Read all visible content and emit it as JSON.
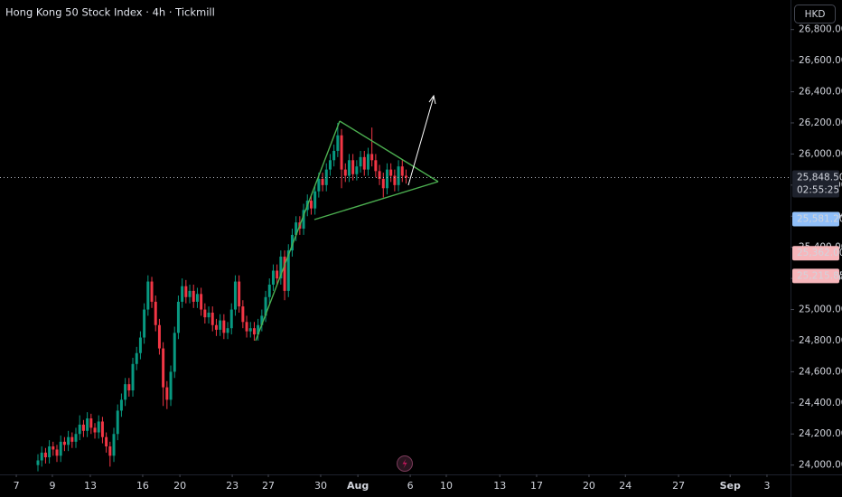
{
  "chart_data": {
    "type": "candlestick",
    "title": "Hong Kong 50 Stock Index · 4h · Tickmill",
    "currency": "HKD",
    "countdown": "02:55:25",
    "up_color": "#089981",
    "down_color": "#f23645",
    "grid": false,
    "ylim": [
      23940,
      26990
    ],
    "yticks": [
      {
        "value": 24000,
        "label": "24,000.00"
      },
      {
        "value": 24200,
        "label": "24,200.00"
      },
      {
        "value": 24400,
        "label": "24,400.00"
      },
      {
        "value": 24600,
        "label": "24,600.00"
      },
      {
        "value": 24800,
        "label": "24,800.00"
      },
      {
        "value": 25000,
        "label": "25,000.00"
      },
      {
        "value": 25200,
        "label": "25,200.00"
      },
      {
        "value": 25400,
        "label": "25,400.00"
      },
      {
        "value": 25600,
        "label": "25,600.00"
      },
      {
        "value": 25800,
        "label": "25,800.00"
      },
      {
        "value": 26000,
        "label": "26,000.00"
      },
      {
        "value": 26200,
        "label": "26,200.00"
      },
      {
        "value": 26400,
        "label": "26,400.00"
      },
      {
        "value": 26600,
        "label": "26,600.00"
      },
      {
        "value": 26800,
        "label": "26,800.00"
      }
    ],
    "xlim": [
      -10,
      198.3
    ],
    "xticks": [
      {
        "value": -5.7,
        "label": "7"
      },
      {
        "value": 3.8,
        "label": "9"
      },
      {
        "value": 13.8,
        "label": "13"
      },
      {
        "value": 27.6,
        "label": "16"
      },
      {
        "value": 37.4,
        "label": "20"
      },
      {
        "value": 51.2,
        "label": "23"
      },
      {
        "value": 60.7,
        "label": "27"
      },
      {
        "value": 74.5,
        "label": "30"
      },
      {
        "value": 84.3,
        "label": "Aug"
      },
      {
        "value": 98.1,
        "label": "6"
      },
      {
        "value": 107.6,
        "label": "10"
      },
      {
        "value": 121.7,
        "label": "13"
      },
      {
        "value": 131.4,
        "label": "17"
      },
      {
        "value": 145.2,
        "label": "20"
      },
      {
        "value": 154.8,
        "label": "24"
      },
      {
        "value": 168.8,
        "label": "27"
      },
      {
        "value": 182.4,
        "label": "Sep"
      },
      {
        "value": 192.1,
        "label": "3"
      }
    ],
    "price_lines": [
      {
        "value": 25848.5,
        "label": "25,848.50",
        "color": "#1e222d",
        "text_color": "#ffffff"
      },
      {
        "value": 25581.2,
        "label": "25,581.20",
        "color": "#90bff9",
        "text_color": "#131722"
      },
      {
        "value": 25362,
        "label": "25,362.00",
        "color": "#f7b6bb",
        "text_color": "#131722"
      },
      {
        "value": 25215.85,
        "label": "25,215.85",
        "color": "#f7b6bb",
        "text_color": "#131722"
      }
    ],
    "candles": [
      [
        24000,
        24070,
        23960,
        24030
      ],
      [
        24030,
        24120,
        23990,
        24080
      ],
      [
        24080,
        24110,
        24010,
        24050
      ],
      [
        24050,
        24160,
        24010,
        24120
      ],
      [
        24120,
        24150,
        24060,
        24100
      ],
      [
        24100,
        24130,
        24020,
        24060
      ],
      [
        24060,
        24190,
        24020,
        24150
      ],
      [
        24150,
        24180,
        24090,
        24130
      ],
      [
        24130,
        24220,
        24090,
        24180
      ],
      [
        24180,
        24210,
        24110,
        24150
      ],
      [
        24150,
        24240,
        24110,
        24200
      ],
      [
        24200,
        24320,
        24160,
        24260
      ],
      [
        24260,
        24290,
        24180,
        24220
      ],
      [
        24220,
        24340,
        24180,
        24300
      ],
      [
        24300,
        24330,
        24200,
        24240
      ],
      [
        24240,
        24270,
        24170,
        24210
      ],
      [
        24210,
        24320,
        24170,
        24280
      ],
      [
        24280,
        24310,
        24140,
        24180
      ],
      [
        24180,
        24210,
        24080,
        24120
      ],
      [
        24120,
        24150,
        23990,
        24060
      ],
      [
        24060,
        24240,
        24020,
        24200
      ],
      [
        24200,
        24390,
        24160,
        24350
      ],
      [
        24350,
        24460,
        24310,
        24420
      ],
      [
        24420,
        24560,
        24380,
        24520
      ],
      [
        24520,
        24560,
        24440,
        24480
      ],
      [
        24480,
        24690,
        24440,
        24650
      ],
      [
        24650,
        24760,
        24610,
        24720
      ],
      [
        24720,
        24860,
        24680,
        24820
      ],
      [
        24820,
        25040,
        24780,
        25000
      ],
      [
        25000,
        25220,
        24960,
        25180
      ],
      [
        25180,
        25210,
        25010,
        25050
      ],
      [
        25050,
        25090,
        24860,
        24900
      ],
      [
        24900,
        24940,
        24710,
        24750
      ],
      [
        24750,
        24790,
        24380,
        24500
      ],
      [
        24500,
        24540,
        24360,
        24420
      ],
      [
        24420,
        24640,
        24380,
        24600
      ],
      [
        24600,
        24890,
        24560,
        24850
      ],
      [
        24850,
        25090,
        24810,
        25050
      ],
      [
        25050,
        25200,
        25010,
        25150
      ],
      [
        25150,
        25190,
        25040,
        25080
      ],
      [
        25080,
        25160,
        25040,
        25120
      ],
      [
        25120,
        25160,
        25010,
        25050
      ],
      [
        25050,
        25140,
        25010,
        25100
      ],
      [
        25100,
        25140,
        24960,
        25000
      ],
      [
        25000,
        25040,
        24910,
        24950
      ],
      [
        24950,
        25020,
        24910,
        24980
      ],
      [
        24980,
        25020,
        24860,
        24900
      ],
      [
        24900,
        24940,
        24830,
        24870
      ],
      [
        24870,
        24970,
        24830,
        24930
      ],
      [
        24930,
        24970,
        24810,
        24850
      ],
      [
        24850,
        24920,
        24810,
        24880
      ],
      [
        24880,
        25040,
        24840,
        25000
      ],
      [
        25000,
        25220,
        24960,
        25180
      ],
      [
        25180,
        25220,
        24980,
        25020
      ],
      [
        25020,
        25060,
        24880,
        24920
      ],
      [
        24920,
        24960,
        24820,
        24860
      ],
      [
        24860,
        24920,
        24820,
        24880
      ],
      [
        24880,
        24920,
        24800,
        24840
      ],
      [
        24840,
        24940,
        24800,
        24900
      ],
      [
        24900,
        25000,
        24860,
        24960
      ],
      [
        24960,
        25120,
        24920,
        25080
      ],
      [
        25080,
        25200,
        25040,
        25160
      ],
      [
        25160,
        25290,
        25120,
        25250
      ],
      [
        25250,
        25290,
        25160,
        25200
      ],
      [
        25200,
        25380,
        25160,
        25340
      ],
      [
        25340,
        25380,
        25060,
        25120
      ],
      [
        25120,
        25420,
        25080,
        25380
      ],
      [
        25380,
        25520,
        25340,
        25480
      ],
      [
        25480,
        25600,
        25440,
        25560
      ],
      [
        25560,
        25600,
        25480,
        25520
      ],
      [
        25520,
        25680,
        25480,
        25640
      ],
      [
        25640,
        25740,
        25600,
        25700
      ],
      [
        25700,
        25740,
        25610,
        25650
      ],
      [
        25650,
        25800,
        25610,
        25760
      ],
      [
        25760,
        25880,
        25720,
        25840
      ],
      [
        25840,
        25880,
        25760,
        25800
      ],
      [
        25800,
        25940,
        25760,
        25900
      ],
      [
        25900,
        26000,
        25860,
        25960
      ],
      [
        25960,
        26060,
        25920,
        26020
      ],
      [
        26020,
        26200,
        25980,
        26120
      ],
      [
        26120,
        26160,
        25780,
        25900
      ],
      [
        25900,
        25940,
        25820,
        25860
      ],
      [
        25860,
        26000,
        25820,
        25960
      ],
      [
        25960,
        26000,
        25830,
        25870
      ],
      [
        25870,
        25960,
        25830,
        25920
      ],
      [
        25920,
        26020,
        25880,
        25980
      ],
      [
        25980,
        26020,
        25860,
        25900
      ],
      [
        25900,
        26040,
        25860,
        26000
      ],
      [
        26000,
        26170,
        25920,
        25960
      ],
      [
        25960,
        26000,
        25850,
        25890
      ],
      [
        25890,
        25930,
        25800,
        25840
      ],
      [
        25840,
        25880,
        25720,
        25780
      ],
      [
        25780,
        25940,
        25740,
        25900
      ],
      [
        25900,
        25940,
        25820,
        25860
      ],
      [
        25860,
        25900,
        25760,
        25800
      ],
      [
        25800,
        25960,
        25760,
        25920
      ],
      [
        25920,
        25960,
        25820,
        25860
      ],
      [
        25860,
        25900,
        25810,
        25848.5
      ]
    ]
  }
}
